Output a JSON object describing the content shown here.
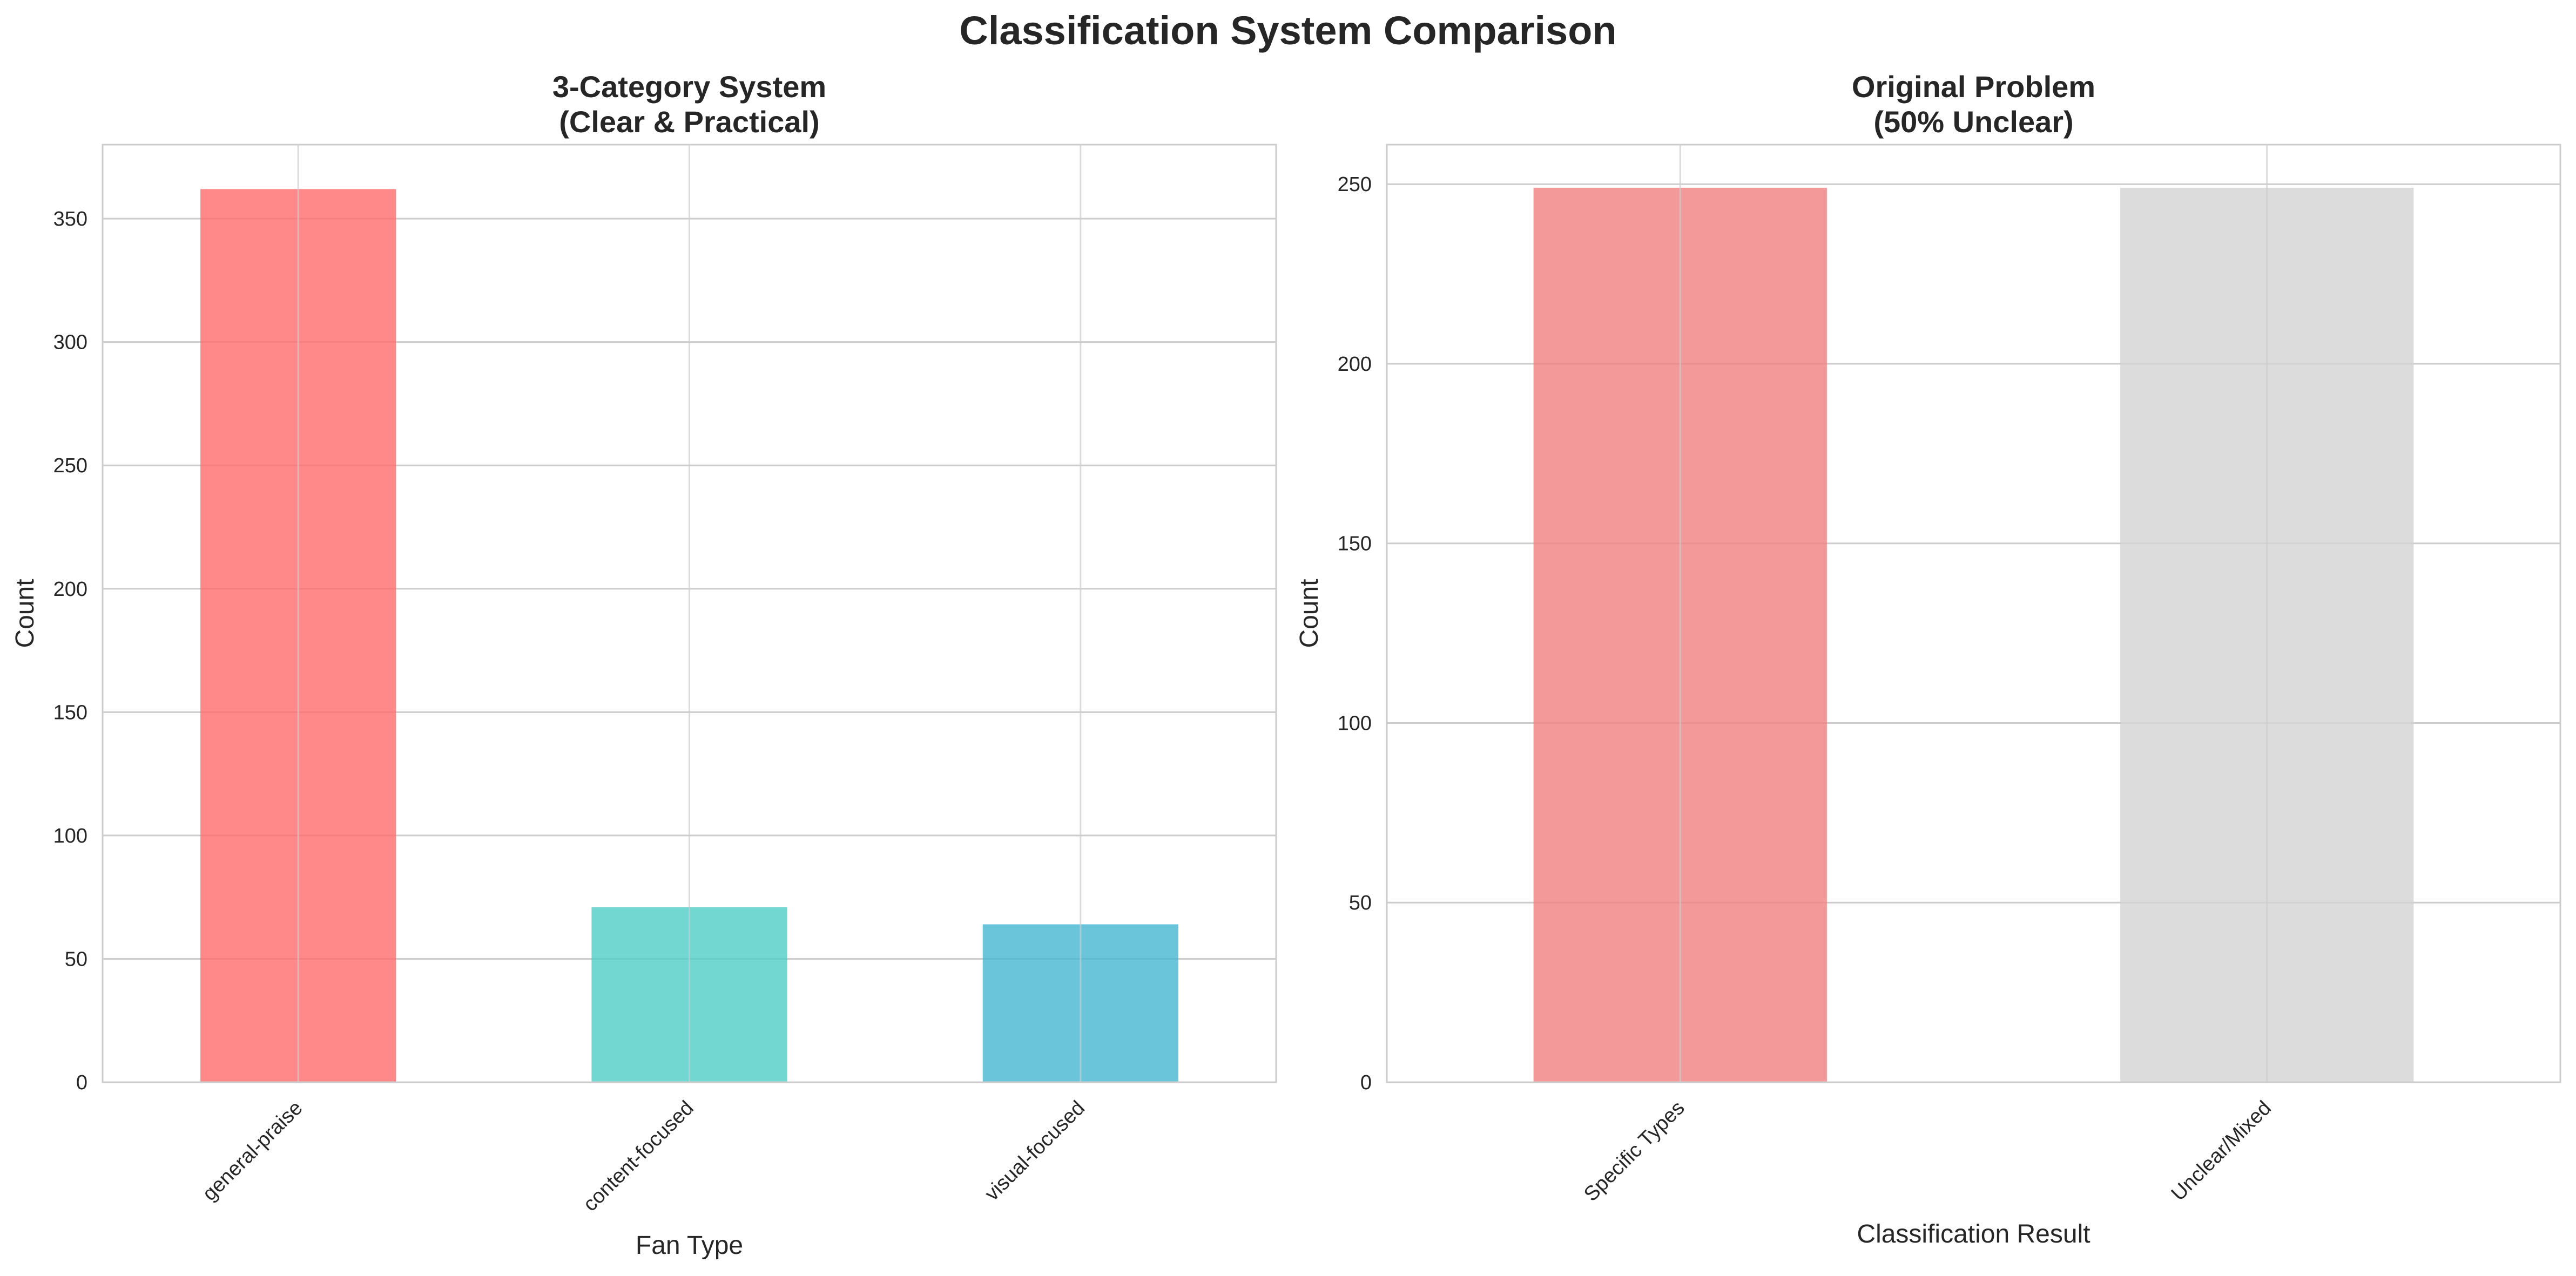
{
  "figure_title": "Classification System Comparison",
  "chart_data": [
    {
      "type": "bar",
      "title_lines": [
        "3-Category System",
        "(Clear & Practical)"
      ],
      "xlabel": "Fan Type",
      "ylabel": "Count",
      "categories": [
        "general-praise",
        "content-focused",
        "visual-focused"
      ],
      "values": [
        362,
        71,
        64
      ],
      "colors": [
        "#ff6b6b",
        "#4ecdc4",
        "#45b7d1"
      ],
      "ylim": [
        0,
        380
      ],
      "yticks": [
        0,
        50,
        100,
        150,
        200,
        250,
        300,
        350
      ],
      "grid": true
    },
    {
      "type": "bar",
      "title_lines": [
        "Original Problem",
        "(50% Unclear)"
      ],
      "xlabel": "Classification Result",
      "ylabel": "Count",
      "categories": [
        "Specific Types",
        "Unclear/Mixed"
      ],
      "values": [
        249,
        249
      ],
      "colors": [
        "#f08080",
        "#d3d3d3"
      ],
      "ylim": [
        0,
        261
      ],
      "yticks": [
        0,
        50,
        100,
        150,
        200,
        250
      ],
      "grid": true
    }
  ]
}
